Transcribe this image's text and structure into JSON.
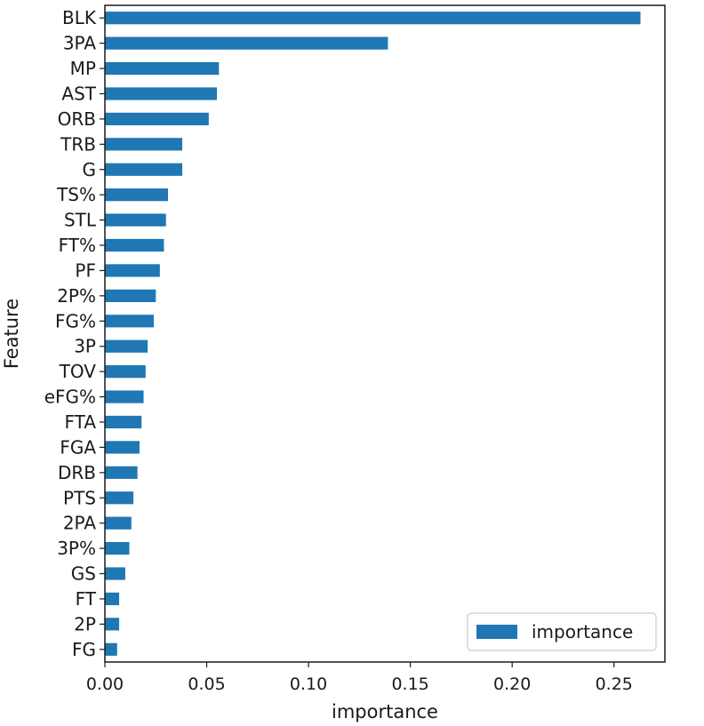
{
  "chart_data": {
    "type": "bar",
    "orientation": "horizontal",
    "title": "",
    "xlabel": "importance",
    "ylabel": "Feature",
    "xlim": [
      0,
      0.275
    ],
    "xticks": [
      0.0,
      0.05,
      0.1,
      0.15,
      0.2,
      0.25
    ],
    "xtick_labels": [
      "0.00",
      "0.05",
      "0.10",
      "0.15",
      "0.20",
      "0.25"
    ],
    "grid": false,
    "legend": {
      "position": "bottom-right",
      "entries": [
        "importance"
      ]
    },
    "categories": [
      "BLK",
      "3PA",
      "MP",
      "AST",
      "ORB",
      "TRB",
      "G",
      "TS%",
      "STL",
      "FT%",
      "PF",
      "2P%",
      "FG%",
      "3P",
      "TOV",
      "eFG%",
      "FTA",
      "FGA",
      "DRB",
      "PTS",
      "2PA",
      "3P%",
      "GS",
      "FT",
      "2P",
      "FG"
    ],
    "series": [
      {
        "name": "importance",
        "color": "#1f77b4",
        "values": [
          0.263,
          0.139,
          0.056,
          0.055,
          0.051,
          0.038,
          0.038,
          0.031,
          0.03,
          0.029,
          0.027,
          0.025,
          0.024,
          0.021,
          0.02,
          0.019,
          0.018,
          0.017,
          0.016,
          0.014,
          0.013,
          0.012,
          0.01,
          0.007,
          0.007,
          0.006
        ]
      }
    ]
  }
}
